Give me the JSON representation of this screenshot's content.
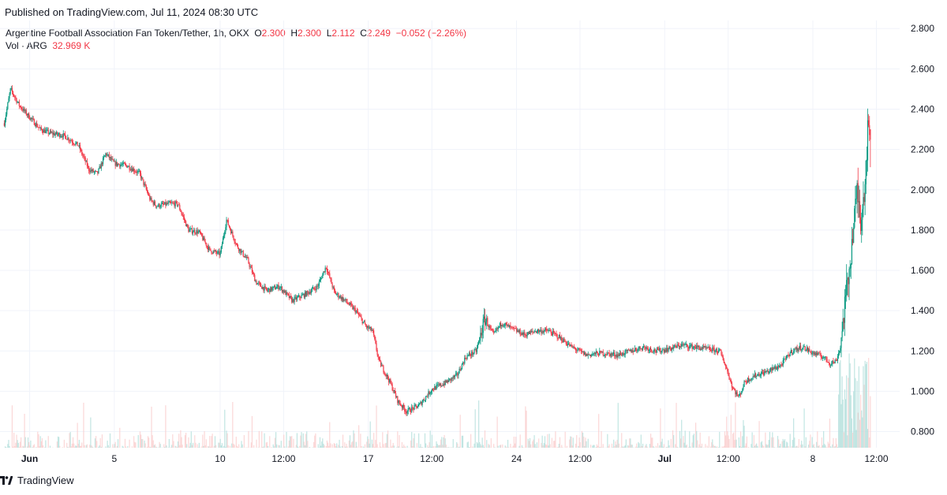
{
  "header": {
    "published": "Published on TradingView.com, Jul 11, 2024 08:30 UTC"
  },
  "legend": {
    "symbol": "Argentine Football Association Fan Token/Tether, 1h, OKX",
    "o_label": "O",
    "o_value": "2.300",
    "h_label": "H",
    "h_value": "2.300",
    "l_label": "L",
    "l_value": "2.112",
    "c_label": "C",
    "c_value": "2.249",
    "change": "−0.052 (−2.26%)",
    "vol_label": "Vol · ARG",
    "vol_value": "32.969 K"
  },
  "footer": {
    "brand": "TradingView"
  },
  "colors": {
    "up": "#089981",
    "down": "#f23645",
    "grid": "#f0f3fa",
    "text": "#131722"
  },
  "chart_data": {
    "type": "candlestick",
    "title": "Argentine Football Association Fan Token/Tether, 1h, OKX",
    "ylim": [
      0.72,
      2.84
    ],
    "y_ticks": [
      "2.800",
      "2.600",
      "2.400",
      "2.200",
      "2.000",
      "1.800",
      "1.600",
      "1.400",
      "1.200",
      "1.000",
      "0.800"
    ],
    "x_ticks": [
      {
        "label": "Jun",
        "t": 1,
        "bold": true
      },
      {
        "label": "5",
        "t": 5,
        "bold": false
      },
      {
        "label": "10",
        "t": 10,
        "bold": false
      },
      {
        "label": "12:00",
        "t": 13,
        "bold": false
      },
      {
        "label": "17",
        "t": 17,
        "bold": false
      },
      {
        "label": "12:00",
        "t": 20,
        "bold": false
      },
      {
        "label": "24",
        "t": 24,
        "bold": false
      },
      {
        "label": "12:00",
        "t": 27,
        "bold": false
      },
      {
        "label": "Jul",
        "t": 31,
        "bold": true
      },
      {
        "label": "12:00",
        "t": 34,
        "bold": false
      },
      {
        "label": "8",
        "t": 38,
        "bold": false
      },
      {
        "label": "12:00",
        "t": 41,
        "bold": false
      }
    ],
    "x_range": [
      -0.4,
      42.1
    ],
    "close_path": [
      [
        -0.2,
        2.33
      ],
      [
        0.1,
        2.5
      ],
      [
        0.5,
        2.42
      ],
      [
        1.0,
        2.36
      ],
      [
        1.5,
        2.3
      ],
      [
        2.0,
        2.28
      ],
      [
        2.6,
        2.27
      ],
      [
        3.3,
        2.22
      ],
      [
        3.8,
        2.1
      ],
      [
        4.2,
        2.08
      ],
      [
        4.6,
        2.18
      ],
      [
        5.0,
        2.13
      ],
      [
        5.6,
        2.12
      ],
      [
        6.2,
        2.08
      ],
      [
        6.7,
        1.95
      ],
      [
        7.0,
        1.92
      ],
      [
        7.6,
        1.93
      ],
      [
        8.0,
        1.93
      ],
      [
        8.5,
        1.8
      ],
      [
        9.0,
        1.79
      ],
      [
        9.5,
        1.7
      ],
      [
        10.0,
        1.68
      ],
      [
        10.3,
        1.85
      ],
      [
        10.8,
        1.72
      ],
      [
        11.3,
        1.65
      ],
      [
        11.7,
        1.54
      ],
      [
        12.2,
        1.5
      ],
      [
        12.8,
        1.52
      ],
      [
        13.4,
        1.45
      ],
      [
        14.0,
        1.48
      ],
      [
        14.6,
        1.52
      ],
      [
        15.0,
        1.62
      ],
      [
        15.4,
        1.49
      ],
      [
        15.9,
        1.45
      ],
      [
        16.4,
        1.4
      ],
      [
        16.9,
        1.32
      ],
      [
        17.2,
        1.3
      ],
      [
        17.5,
        1.15
      ],
      [
        18.0,
        1.05
      ],
      [
        18.4,
        0.95
      ],
      [
        18.8,
        0.9
      ],
      [
        19.4,
        0.93
      ],
      [
        20.0,
        1.01
      ],
      [
        20.6,
        1.04
      ],
      [
        21.2,
        1.08
      ],
      [
        21.6,
        1.17
      ],
      [
        22.1,
        1.2
      ],
      [
        22.5,
        1.36
      ],
      [
        22.9,
        1.28
      ],
      [
        23.3,
        1.34
      ],
      [
        23.8,
        1.31
      ],
      [
        24.4,
        1.28
      ],
      [
        24.9,
        1.3
      ],
      [
        25.5,
        1.3
      ],
      [
        26.0,
        1.27
      ],
      [
        26.6,
        1.22
      ],
      [
        27.3,
        1.18
      ],
      [
        28.0,
        1.19
      ],
      [
        28.8,
        1.18
      ],
      [
        29.4,
        1.2
      ],
      [
        30.0,
        1.22
      ],
      [
        30.6,
        1.2
      ],
      [
        31.2,
        1.21
      ],
      [
        31.8,
        1.23
      ],
      [
        32.4,
        1.22
      ],
      [
        33.0,
        1.21
      ],
      [
        33.6,
        1.2
      ],
      [
        33.9,
        1.12
      ],
      [
        34.2,
        1.02
      ],
      [
        34.5,
        0.97
      ],
      [
        34.8,
        1.05
      ],
      [
        35.3,
        1.08
      ],
      [
        35.9,
        1.1
      ],
      [
        36.5,
        1.13
      ],
      [
        37.0,
        1.2
      ],
      [
        37.5,
        1.22
      ],
      [
        38.0,
        1.19
      ],
      [
        38.5,
        1.17
      ],
      [
        38.8,
        1.14
      ],
      [
        39.1,
        1.15
      ],
      [
        39.3,
        1.22
      ],
      [
        39.5,
        1.42
      ],
      [
        39.7,
        1.58
      ],
      [
        39.9,
        1.8
      ],
      [
        40.1,
        2.0
      ],
      [
        40.25,
        1.85
      ],
      [
        40.45,
        2.02
      ],
      [
        40.6,
        2.3
      ],
      [
        40.75,
        2.249
      ]
    ]
  }
}
